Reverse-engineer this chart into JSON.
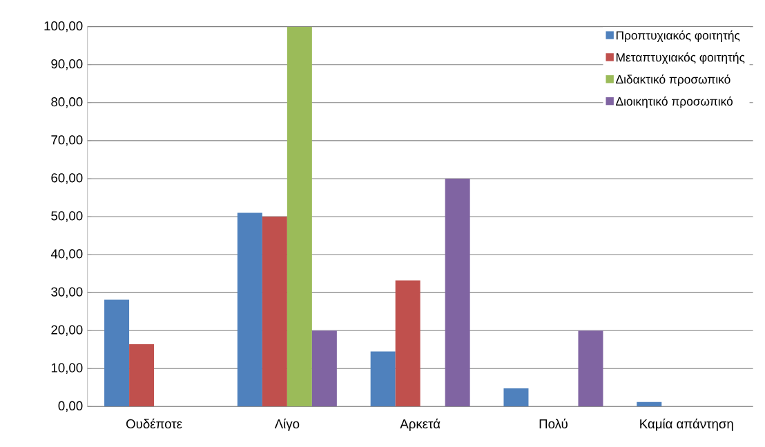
{
  "chart_data": {
    "type": "bar",
    "categories": [
      "Ουδέποτε",
      "Λίγο",
      "Αρκετά",
      "Πολύ",
      "Καμία απάντηση"
    ],
    "series": [
      {
        "name": "Προπτυχιακός φοιτητής",
        "color": "#4f81bd",
        "values": [
          28.1,
          51.0,
          14.5,
          4.8,
          1.2
        ]
      },
      {
        "name": "Μεταπτυχιακός φοιτητής",
        "color": "#c0504d",
        "values": [
          16.4,
          50.0,
          33.2,
          0,
          0
        ]
      },
      {
        "name": "Διδακτικό προσωπικό",
        "color": "#9bbb59",
        "values": [
          0,
          100.0,
          0,
          0,
          0
        ]
      },
      {
        "name": "Διοικητικό προσωπικό",
        "color": "#8064a2",
        "values": [
          0,
          20.0,
          60.0,
          20.0,
          0
        ]
      }
    ],
    "ylim": [
      0,
      100
    ],
    "yticks": [
      {
        "value": 0,
        "label": "0,00"
      },
      {
        "value": 10,
        "label": "10,00"
      },
      {
        "value": 20,
        "label": "20,00"
      },
      {
        "value": 30,
        "label": "30,00"
      },
      {
        "value": 40,
        "label": "40,00"
      },
      {
        "value": 50,
        "label": "50,00"
      },
      {
        "value": 60,
        "label": "60,00"
      },
      {
        "value": 70,
        "label": "70,00"
      },
      {
        "value": 80,
        "label": "80,00"
      },
      {
        "value": 90,
        "label": "90,00"
      },
      {
        "value": 100,
        "label": "100,00"
      }
    ],
    "grid": "y",
    "legend": "top right"
  }
}
